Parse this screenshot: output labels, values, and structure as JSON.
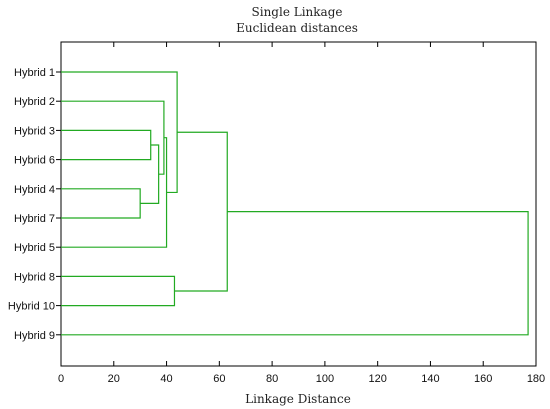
{
  "chart_data": {
    "type": "dendrogram",
    "title": "Single Linkage",
    "subtitle": "Euclidean distances",
    "xlabel": "Linkage Distance",
    "xlim": [
      0,
      180
    ],
    "xticks": [
      0,
      20,
      40,
      60,
      80,
      100,
      120,
      140,
      160,
      180
    ],
    "leaves": [
      "Hybrid 1",
      "Hybrid 2",
      "Hybrid 3",
      "Hybrid 6",
      "Hybrid 4",
      "Hybrid 7",
      "Hybrid 5",
      "Hybrid 8",
      "Hybrid 10",
      "Hybrid 9"
    ],
    "merges": [
      {
        "id": "c1",
        "left": "Hybrid 4",
        "right": "Hybrid 7",
        "distance": 30
      },
      {
        "id": "c2",
        "left": "Hybrid 3",
        "right": "Hybrid 6",
        "distance": 34
      },
      {
        "id": "c3",
        "left": "c2",
        "right": "c1",
        "distance": 37
      },
      {
        "id": "c4",
        "left": "Hybrid 2",
        "right": "c3",
        "distance": 39
      },
      {
        "id": "c5",
        "left": "c4",
        "right": "Hybrid 5",
        "distance": 40
      },
      {
        "id": "c6",
        "left": "Hybrid 1",
        "right": "c5",
        "distance": 44
      },
      {
        "id": "c7",
        "left": "Hybrid 8",
        "right": "Hybrid 10",
        "distance": 43
      },
      {
        "id": "c8",
        "left": "c6",
        "right": "c7",
        "distance": 63
      },
      {
        "id": "c9",
        "left": "c8",
        "right": "Hybrid 9",
        "distance": 177
      }
    ],
    "line_color": "#22aa22",
    "grid": false
  }
}
